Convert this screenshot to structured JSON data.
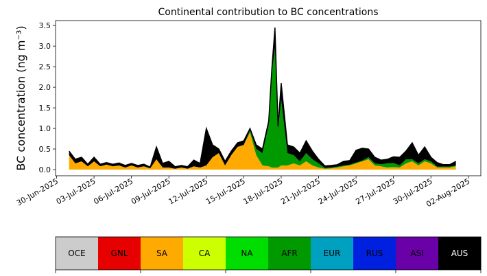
{
  "chart_data": {
    "type": "area",
    "title": "Continental contribution to BC concentrations",
    "ylabel": "BC concentration (ng m⁻³)",
    "xlabel": "",
    "ylim": [
      -0.15,
      3.62
    ],
    "xlim": [
      "2025-06-29T22:00",
      "2025-08-03T00:00"
    ],
    "yticks": [
      "0.0",
      "0.5",
      "1.0",
      "1.5",
      "2.0",
      "2.5",
      "3.0",
      "3.5"
    ],
    "xticks": [
      "30-Jun-2025",
      "03-Jul-2025",
      "06-Jul-2025",
      "09-Jul-2025",
      "12-Jul-2025",
      "15-Jul-2025",
      "18-Jul-2025",
      "21-Jul-2025",
      "24-Jul-2025",
      "27-Jul-2025",
      "30-Jul-2025",
      "02-Aug-2025"
    ],
    "x": [
      "2025-07-01T00:00",
      "2025-07-01T12:00",
      "2025-07-02T00:00",
      "2025-07-02T12:00",
      "2025-07-03T00:00",
      "2025-07-03T12:00",
      "2025-07-04T00:00",
      "2025-07-04T12:00",
      "2025-07-05T00:00",
      "2025-07-05T12:00",
      "2025-07-06T00:00",
      "2025-07-06T12:00",
      "2025-07-07T00:00",
      "2025-07-07T12:00",
      "2025-07-08T00:00",
      "2025-07-08T12:00",
      "2025-07-09T00:00",
      "2025-07-09T12:00",
      "2025-07-10T00:00",
      "2025-07-10T12:00",
      "2025-07-11T00:00",
      "2025-07-11T12:00",
      "2025-07-12T00:00",
      "2025-07-12T12:00",
      "2025-07-13T00:00",
      "2025-07-13T12:00",
      "2025-07-14T00:00",
      "2025-07-14T12:00",
      "2025-07-15T00:00",
      "2025-07-15T12:00",
      "2025-07-16T00:00",
      "2025-07-16T12:00",
      "2025-07-17T00:00",
      "2025-07-17T06:00",
      "2025-07-17T12:00",
      "2025-07-17T18:00",
      "2025-07-18T00:00",
      "2025-07-18T12:00",
      "2025-07-19T00:00",
      "2025-07-19T12:00",
      "2025-07-20T00:00",
      "2025-07-20T12:00",
      "2025-07-21T00:00",
      "2025-07-21T12:00",
      "2025-07-22T00:00",
      "2025-07-22T12:00",
      "2025-07-23T00:00",
      "2025-07-23T12:00",
      "2025-07-24T00:00",
      "2025-07-24T12:00",
      "2025-07-25T00:00",
      "2025-07-25T12:00",
      "2025-07-26T00:00",
      "2025-07-26T12:00",
      "2025-07-27T00:00",
      "2025-07-27T12:00",
      "2025-07-28T00:00",
      "2025-07-28T12:00",
      "2025-07-29T00:00",
      "2025-07-29T12:00",
      "2025-07-30T00:00",
      "2025-07-30T12:00",
      "2025-07-31T00:00",
      "2025-07-31T12:00",
      "2025-08-01T00:00"
    ],
    "series": [
      {
        "name": "OCE",
        "color": "#cccccc",
        "values": [
          0,
          0,
          0,
          0,
          0,
          0,
          0,
          0,
          0,
          0,
          0,
          0,
          0,
          0,
          0,
          0,
          0,
          0,
          0,
          0,
          0,
          0,
          0,
          0,
          0,
          0,
          0,
          0,
          0,
          0,
          0,
          0,
          0,
          0,
          0,
          0,
          0,
          0,
          0,
          0,
          0,
          0,
          0,
          0,
          0,
          0,
          0,
          0,
          0,
          0,
          0,
          0,
          0,
          0,
          0,
          0,
          0,
          0,
          0,
          0,
          0,
          0,
          0,
          0,
          0
        ]
      },
      {
        "name": "GNL",
        "color": "#e60000",
        "values": [
          0,
          0,
          0,
          0,
          0,
          0,
          0,
          0,
          0,
          0,
          0,
          0,
          0,
          0,
          0,
          0,
          0,
          0,
          0,
          0,
          0,
          0,
          0,
          0,
          0,
          0,
          0,
          0,
          0,
          0,
          0,
          0,
          0,
          0,
          0,
          0,
          0,
          0,
          0,
          0,
          0,
          0,
          0,
          0,
          0,
          0,
          0,
          0,
          0,
          0,
          0,
          0,
          0,
          0,
          0,
          0,
          0,
          0,
          0,
          0,
          0,
          0,
          0,
          0,
          0
        ]
      },
      {
        "name": "SA",
        "color": "#ffaa00",
        "values": [
          0.35,
          0.15,
          0.2,
          0.08,
          0.2,
          0.08,
          0.12,
          0.08,
          0.1,
          0.05,
          0.1,
          0.05,
          0.08,
          0.03,
          0.25,
          0.05,
          0.05,
          0.02,
          0.05,
          0.02,
          0.08,
          0.05,
          0.1,
          0.3,
          0.4,
          0.1,
          0.35,
          0.55,
          0.6,
          0.9,
          0.35,
          0.1,
          0.08,
          0.05,
          0.05,
          0.05,
          0.1,
          0.1,
          0.15,
          0.1,
          0.2,
          0.1,
          0.05,
          0.02,
          0.03,
          0.05,
          0.08,
          0.1,
          0.15,
          0.2,
          0.25,
          0.1,
          0.08,
          0.05,
          0.06,
          0.05,
          0.15,
          0.2,
          0.1,
          0.2,
          0.15,
          0.05,
          0.05,
          0.05,
          0.08
        ]
      },
      {
        "name": "CA",
        "color": "#ccff00",
        "values": [
          0,
          0,
          0,
          0,
          0,
          0,
          0,
          0,
          0,
          0,
          0,
          0,
          0,
          0,
          0,
          0,
          0,
          0,
          0,
          0,
          0,
          0,
          0,
          0,
          0,
          0,
          0,
          0,
          0,
          0,
          0,
          0,
          0,
          0,
          0,
          0,
          0,
          0,
          0,
          0,
          0,
          0,
          0,
          0,
          0,
          0,
          0,
          0,
          0,
          0,
          0,
          0,
          0,
          0,
          0,
          0,
          0,
          0,
          0,
          0,
          0,
          0,
          0,
          0,
          0
        ]
      },
      {
        "name": "NA",
        "color": "#00dd00",
        "values": [
          0,
          0,
          0,
          0,
          0,
          0,
          0,
          0,
          0,
          0,
          0,
          0,
          0,
          0,
          0,
          0,
          0,
          0,
          0,
          0,
          0,
          0,
          0,
          0,
          0,
          0,
          0,
          0,
          0,
          0,
          0,
          0,
          0,
          0,
          0,
          0,
          0,
          0,
          0,
          0,
          0,
          0,
          0,
          0,
          0,
          0,
          0,
          0,
          0,
          0,
          0,
          0,
          0,
          0,
          0,
          0,
          0,
          0,
          0,
          0,
          0,
          0,
          0,
          0,
          0
        ]
      },
      {
        "name": "AFR",
        "color": "#009900",
        "values": [
          0,
          0,
          0,
          0,
          0,
          0,
          0,
          0,
          0,
          0,
          0,
          0,
          0,
          0,
          0,
          0,
          0,
          0,
          0,
          0,
          0,
          0,
          0,
          0,
          0,
          0,
          0,
          0,
          0,
          0.05,
          0.15,
          0.3,
          1.0,
          2.3,
          2.9,
          0.9,
          1.6,
          0.3,
          0.2,
          0.1,
          0.2,
          0.15,
          0.1,
          0.02,
          0.02,
          0.02,
          0.02,
          0.02,
          0.02,
          0.02,
          0.05,
          0.05,
          0.05,
          0.1,
          0.1,
          0.05,
          0.1,
          0.05,
          0.05,
          0.05,
          0.05,
          0.02,
          0.02,
          0.02,
          0.02
        ]
      },
      {
        "name": "EUR",
        "color": "#00a0c0",
        "values": [
          0,
          0,
          0,
          0,
          0,
          0,
          0,
          0,
          0,
          0,
          0,
          0,
          0,
          0,
          0,
          0,
          0,
          0,
          0,
          0,
          0,
          0,
          0,
          0,
          0,
          0,
          0,
          0,
          0,
          0,
          0,
          0,
          0,
          0,
          0,
          0,
          0,
          0,
          0,
          0,
          0,
          0,
          0,
          0,
          0,
          0,
          0,
          0,
          0,
          0,
          0,
          0,
          0,
          0,
          0,
          0,
          0,
          0,
          0,
          0,
          0,
          0,
          0,
          0,
          0
        ]
      },
      {
        "name": "RUS",
        "color": "#0020e0",
        "values": [
          0,
          0,
          0,
          0,
          0,
          0,
          0,
          0,
          0,
          0,
          0,
          0,
          0,
          0,
          0,
          0,
          0,
          0,
          0,
          0,
          0,
          0,
          0,
          0,
          0,
          0,
          0,
          0,
          0,
          0,
          0,
          0,
          0,
          0,
          0,
          0,
          0,
          0,
          0,
          0,
          0,
          0,
          0,
          0,
          0,
          0,
          0,
          0,
          0,
          0,
          0,
          0,
          0,
          0,
          0,
          0,
          0,
          0,
          0,
          0,
          0,
          0,
          0,
          0,
          0
        ]
      },
      {
        "name": "ASI",
        "color": "#6a00a8",
        "values": [
          0,
          0,
          0,
          0,
          0,
          0,
          0,
          0,
          0,
          0,
          0,
          0,
          0,
          0,
          0,
          0,
          0,
          0,
          0,
          0,
          0,
          0,
          0,
          0,
          0,
          0,
          0,
          0,
          0,
          0,
          0,
          0,
          0,
          0,
          0,
          0,
          0,
          0,
          0,
          0,
          0,
          0,
          0,
          0,
          0,
          0,
          0,
          0,
          0,
          0,
          0,
          0,
          0,
          0,
          0,
          0,
          0,
          0,
          0,
          0,
          0,
          0,
          0,
          0,
          0
        ]
      },
      {
        "name": "AUS",
        "color": "#000000",
        "values": [
          0.1,
          0.1,
          0.1,
          0.05,
          0.1,
          0.05,
          0.05,
          0.05,
          0.06,
          0.05,
          0.05,
          0.05,
          0.05,
          0.03,
          0.3,
          0.1,
          0.15,
          0.05,
          0.05,
          0.05,
          0.15,
          0.1,
          0.9,
          0.3,
          0.1,
          0.1,
          0.1,
          0.1,
          0.1,
          0.05,
          0.1,
          0.1,
          0.1,
          0.1,
          0.5,
          0.1,
          0.4,
          0.2,
          0.2,
          0.2,
          0.3,
          0.2,
          0.1,
          0.05,
          0.05,
          0.05,
          0.1,
          0.1,
          0.3,
          0.3,
          0.2,
          0.15,
          0.1,
          0.1,
          0.15,
          0.2,
          0.2,
          0.4,
          0.2,
          0.3,
          0.1,
          0.1,
          0.05,
          0.05,
          0.1
        ]
      }
    ],
    "legend": {
      "placement": "bottom"
    }
  }
}
